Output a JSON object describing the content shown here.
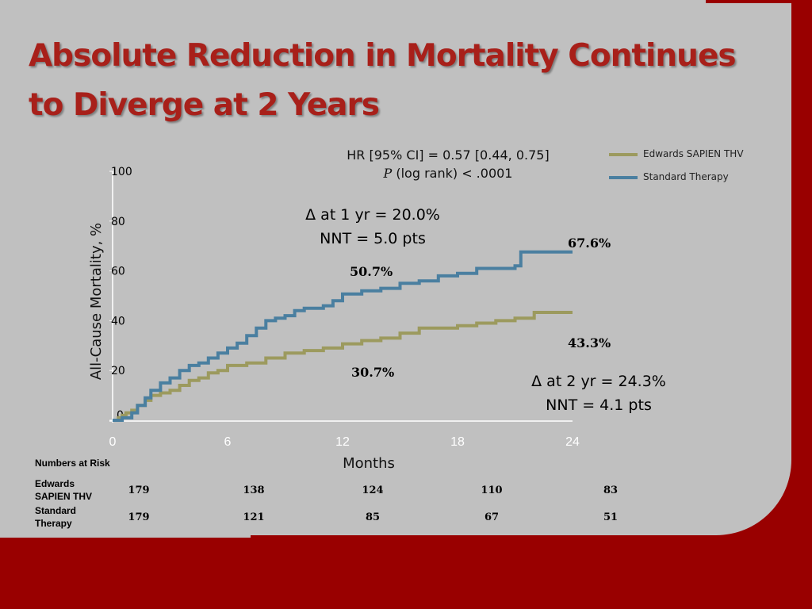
{
  "slide": {
    "title_line1": "Absolute Reduction in Mortality Continues",
    "title_line2": "to Diverge at 2 Years"
  },
  "colors": {
    "background": "#990000",
    "panel": "#c0c0c0",
    "title": "#a8201a",
    "series_edwards": "#9c9a5e",
    "series_standard": "#4a7fa0"
  },
  "stats": {
    "hr_line": "HR [95% CI] = 0.57 [0.44, 0.75]",
    "p_symbol": "P",
    "p_rest": " (log rank) < .0001"
  },
  "annotations": {
    "delta_1yr": "Δ at 1 yr = 20.0%",
    "nnt_1yr": "NNT = 5.0 pts",
    "delta_2yr": "Δ at 2 yr = 24.3%",
    "nnt_2yr": "NNT = 4.1 pts",
    "std_1yr": "50.7%",
    "edw_1yr": "30.7%",
    "std_2yr": "67.6%",
    "edw_2yr": "43.3%"
  },
  "risk_table": {
    "title": "Numbers at Risk",
    "rows": [
      {
        "label_line1": "Edwards",
        "label_line2": "SAPIEN THV",
        "values": [
          "179",
          "138",
          "124",
          "110",
          "83"
        ]
      },
      {
        "label_line1": "Standard",
        "label_line2": "Therapy",
        "values": [
          "179",
          "121",
          "85",
          "67",
          "51"
        ]
      }
    ]
  },
  "chart_data": {
    "type": "line",
    "title": "",
    "xlabel": "Months",
    "ylabel": "All-Cause Mortality, %",
    "xlim": [
      0,
      24
    ],
    "ylim": [
      0,
      100
    ],
    "x_ticks": [
      "0",
      "6",
      "12",
      "18",
      "24"
    ],
    "y_ticks": [
      "0",
      "20",
      "40",
      "60",
      "80",
      "100"
    ],
    "grid": false,
    "legend_position": "top-right",
    "step": true,
    "series": [
      {
        "name": "Edwards SAPIEN THV",
        "color": "#9c9a5e",
        "points": [
          [
            0,
            0
          ],
          [
            0.3,
            1
          ],
          [
            0.5,
            2
          ],
          [
            0.7,
            3
          ],
          [
            1.0,
            4
          ],
          [
            1.3,
            6
          ],
          [
            1.7,
            8
          ],
          [
            2.0,
            10
          ],
          [
            2.5,
            11
          ],
          [
            3.0,
            12
          ],
          [
            3.5,
            14
          ],
          [
            4.0,
            16
          ],
          [
            4.5,
            17
          ],
          [
            5.0,
            19
          ],
          [
            5.5,
            20
          ],
          [
            6.0,
            22
          ],
          [
            7.0,
            23
          ],
          [
            8.0,
            25
          ],
          [
            9.0,
            27
          ],
          [
            10.0,
            28
          ],
          [
            11.0,
            29
          ],
          [
            12.0,
            30.7
          ],
          [
            13.0,
            32
          ],
          [
            14.0,
            33
          ],
          [
            15.0,
            35
          ],
          [
            16.0,
            37
          ],
          [
            17.0,
            37
          ],
          [
            18.0,
            38
          ],
          [
            19.0,
            39
          ],
          [
            20.0,
            40
          ],
          [
            21.0,
            41
          ],
          [
            22.0,
            43.3
          ],
          [
            24.0,
            43.3
          ]
        ]
      },
      {
        "name": "Standard Therapy",
        "color": "#4a7fa0",
        "points": [
          [
            0,
            0
          ],
          [
            0.5,
            1
          ],
          [
            1.0,
            3
          ],
          [
            1.3,
            6
          ],
          [
            1.7,
            9
          ],
          [
            2.0,
            12
          ],
          [
            2.5,
            15
          ],
          [
            3.0,
            17
          ],
          [
            3.5,
            20
          ],
          [
            4.0,
            22
          ],
          [
            4.5,
            23
          ],
          [
            5.0,
            25
          ],
          [
            5.5,
            27
          ],
          [
            6.0,
            29
          ],
          [
            6.5,
            31
          ],
          [
            7.0,
            34
          ],
          [
            7.5,
            37
          ],
          [
            8.0,
            40
          ],
          [
            8.5,
            41
          ],
          [
            9.0,
            42
          ],
          [
            9.5,
            44
          ],
          [
            10.0,
            45
          ],
          [
            11.0,
            46
          ],
          [
            11.5,
            48
          ],
          [
            12.0,
            50.7
          ],
          [
            13.0,
            52
          ],
          [
            14.0,
            53
          ],
          [
            15.0,
            55
          ],
          [
            16.0,
            56
          ],
          [
            17.0,
            58
          ],
          [
            18.0,
            59
          ],
          [
            19.0,
            61
          ],
          [
            20.0,
            61
          ],
          [
            21.0,
            62
          ],
          [
            21.3,
            67.6
          ],
          [
            24.0,
            67.6
          ]
        ]
      }
    ]
  }
}
